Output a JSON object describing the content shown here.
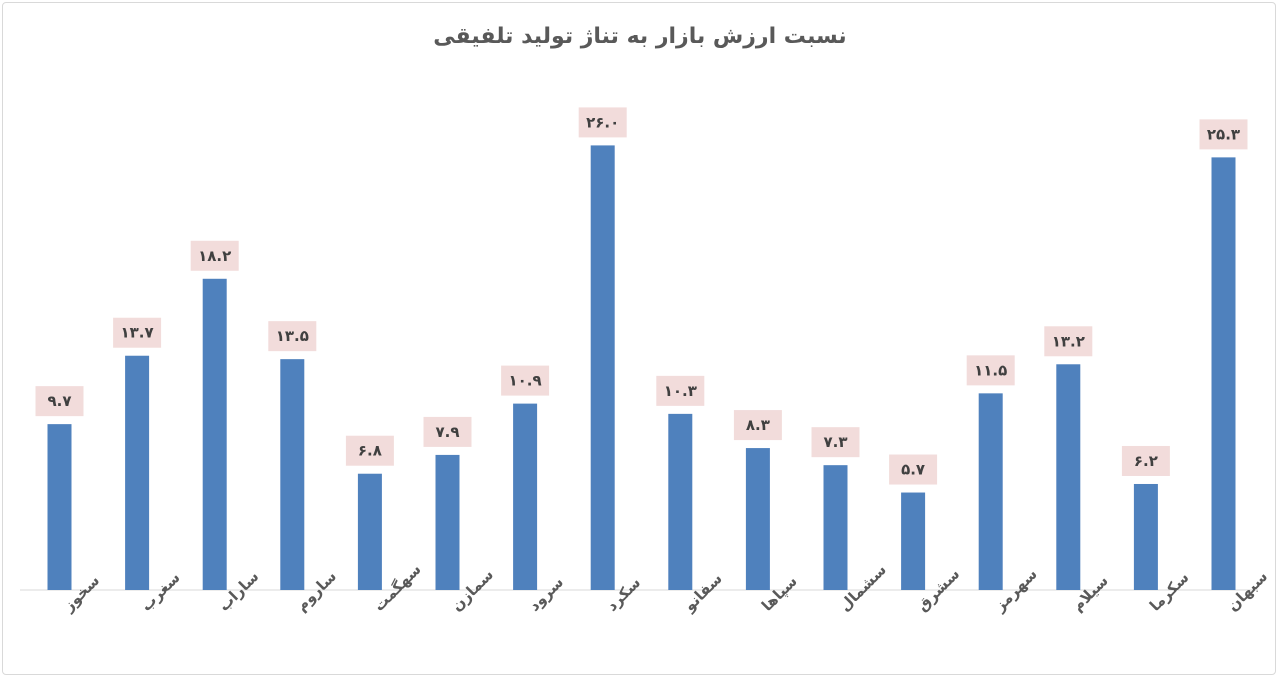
{
  "chart_data": {
    "type": "bar",
    "title": "نسبت ارزش بازار به تناژ تولید تلفیقی",
    "categories": [
      "سخوز",
      "سغرب",
      "ساراب",
      "ساروم",
      "سهگمت",
      "سمازن",
      "سرود",
      "سکرد",
      "سفانو",
      "سپاها",
      "سشمال",
      "سشرق",
      "سهرمز",
      "سیلام",
      "سکرما",
      "سبهان"
    ],
    "values": [
      9.7,
      13.7,
      18.2,
      13.5,
      6.8,
      7.9,
      10.9,
      26.0,
      10.3,
      8.3,
      7.3,
      5.7,
      11.5,
      13.2,
      6.2,
      25.3
    ],
    "value_labels": [
      "۹.۷",
      "۱۳.۷",
      "۱۸.۲",
      "۱۳.۵",
      "۶.۸",
      "۷.۹",
      "۱۰.۹",
      "۲۶.۰",
      "۱۰.۳",
      "۸.۳",
      "۷.۳",
      "۵.۷",
      "۱۱.۵",
      "۱۳.۲",
      "۶.۲",
      "۲۵.۳"
    ],
    "xlabel": "",
    "ylabel": "",
    "ylim": [
      0,
      30
    ],
    "grid": false,
    "legend": "none",
    "colors": {
      "bar": "#4f81bd",
      "label_bg": "#f2dcdb"
    }
  }
}
